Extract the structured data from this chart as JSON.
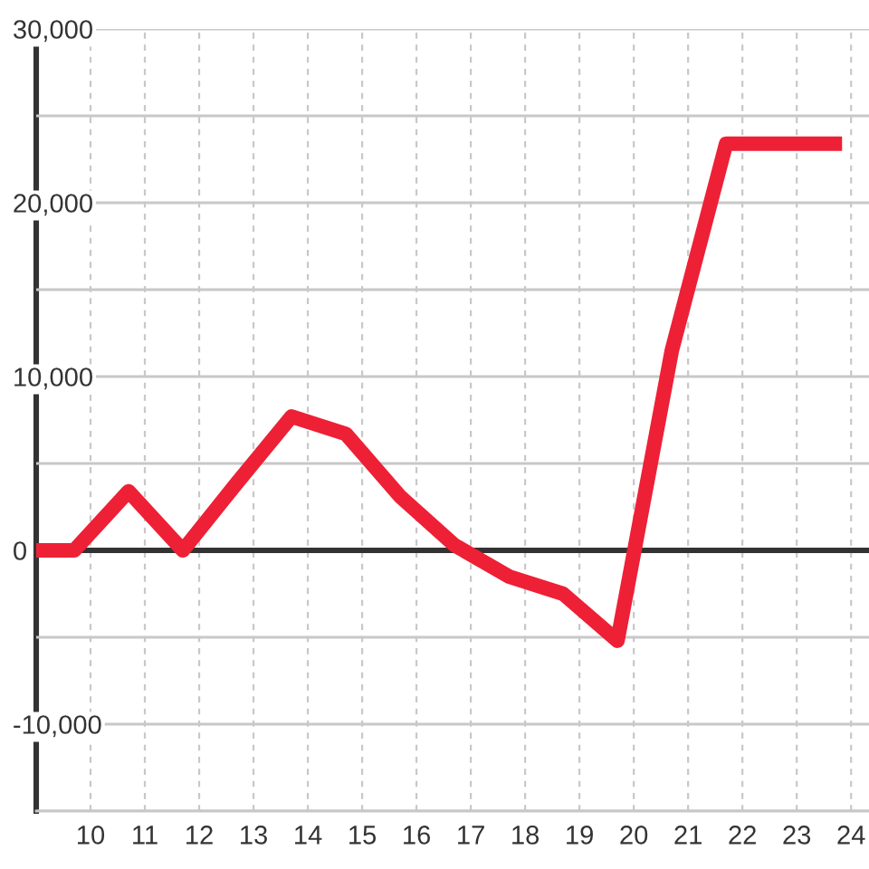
{
  "chart_data": {
    "type": "line",
    "x": [
      9,
      9.7,
      10.7,
      11.7,
      12.7,
      13.7,
      14.7,
      15.7,
      16.7,
      17.7,
      18.7,
      19.7,
      20.7,
      21.7,
      22.7,
      23.7
    ],
    "values": [
      0,
      0,
      3400,
      0,
      3900,
      7700,
      6700,
      3100,
      300,
      -1500,
      -2500,
      -5200,
      11500,
      23400,
      23400,
      23400
    ],
    "color": "#ee2036",
    "line_style": "solid",
    "xlim": [
      9,
      24.33
    ],
    "xticks": [
      10,
      11,
      12,
      13,
      14,
      15,
      16,
      17,
      18,
      19,
      20,
      21,
      22,
      23,
      24
    ],
    "ylim": [
      -15000,
      30000
    ],
    "yticks": [
      {
        "value": -15000,
        "label": null
      },
      {
        "value": -10000,
        "label": "-10,000"
      },
      {
        "value": -5000,
        "label": null
      },
      {
        "value": 0,
        "label": "0"
      },
      {
        "value": 5000,
        "label": null
      },
      {
        "value": 10000,
        "label": "10,000"
      },
      {
        "value": 15000,
        "label": null
      },
      {
        "value": 20000,
        "label": "20,000"
      },
      {
        "value": 25000,
        "label": null
      },
      {
        "value": 30000,
        "label": "30,000"
      }
    ],
    "grid": true,
    "ref_lines": [
      {
        "axis": "y",
        "value": 0,
        "color": "#333333"
      }
    ]
  }
}
